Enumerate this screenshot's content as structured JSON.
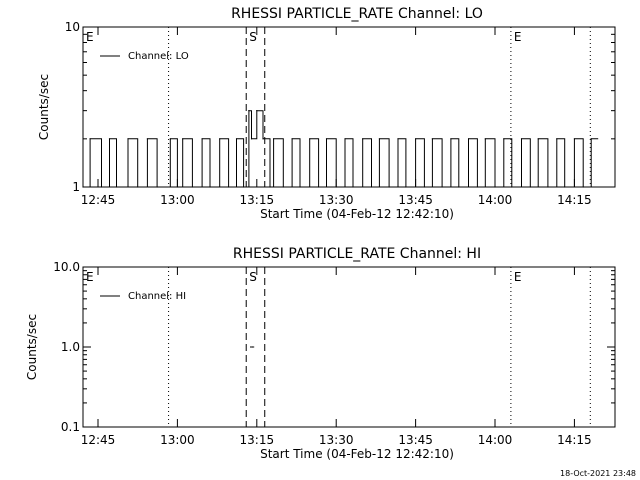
{
  "footer_text": "18-Oct-2021 23:48",
  "colors": {
    "background": "#ffffff",
    "foreground": "#000000"
  },
  "chart_data": [
    {
      "type": "line",
      "title": "RHESSI PARTICLE_RATE Channel: LO",
      "xlabel": "Start Time (04-Feb-12 12:42:10)",
      "ylabel": "Counts/sec",
      "yscale": "log",
      "ylim": [
        1,
        10
      ],
      "yticks": [
        "1",
        "10"
      ],
      "xlim": [
        "12:42:10",
        "14:22:40"
      ],
      "xticks": [
        "12:45",
        "13:00",
        "13:15",
        "13:30",
        "13:45",
        "14:00",
        "14:15"
      ],
      "legend": {
        "entries": [
          "Channel: LO"
        ],
        "placement": "top-left"
      },
      "markers": [
        {
          "label": "E",
          "time": "12:42:10",
          "style": "none"
        },
        {
          "label": "",
          "time": "12:58:20",
          "style": "dotted"
        },
        {
          "label": "S",
          "time": "13:13:00",
          "style": "dashed"
        },
        {
          "label": "",
          "time": "13:16:30",
          "style": "dashed"
        },
        {
          "label": "E",
          "time": "14:03:00",
          "style": "dotted"
        },
        {
          "label": "",
          "time": "14:18:00",
          "style": "dotted"
        }
      ],
      "series": [
        {
          "name": "Channel: LO",
          "x": [
            "12:42:10",
            "12:43:30",
            "12:45:40",
            "12:47:10",
            "12:48:30",
            "12:50:40",
            "12:52:30",
            "12:54:20",
            "12:56:10",
            "12:58:40",
            "13:00:00",
            "13:01:00",
            "13:02:50",
            "13:04:40",
            "13:06:10",
            "13:08:00",
            "13:09:40",
            "13:11:10",
            "13:12:30",
            "13:13:30",
            "13:14:00",
            "13:15:00",
            "13:16:10",
            "13:17:30",
            "13:18:10",
            "13:20:00",
            "13:21:40",
            "13:23:10",
            "13:25:00",
            "13:26:40",
            "13:28:10",
            "13:30:00",
            "13:31:40",
            "13:33:10",
            "13:35:00",
            "13:36:40",
            "13:38:10",
            "13:40:00",
            "13:41:40",
            "13:43:10",
            "13:45:00",
            "13:46:40",
            "13:48:10",
            "13:50:00",
            "13:51:40",
            "13:53:10",
            "13:55:00",
            "13:56:40",
            "13:58:10",
            "14:00:00",
            "14:01:40",
            "14:03:10",
            "14:05:00",
            "14:06:40",
            "14:08:10",
            "14:10:00",
            "14:11:40",
            "14:13:10",
            "14:15:00",
            "14:16:40",
            "14:18:10"
          ],
          "values": [
            1,
            2,
            1,
            2,
            1,
            2,
            1,
            2,
            1,
            2,
            1,
            2,
            1,
            2,
            1,
            2,
            1,
            2,
            1,
            3,
            2,
            3,
            2,
            1,
            2,
            1,
            2,
            1,
            2,
            1,
            2,
            1,
            2,
            1,
            2,
            1,
            2,
            1,
            2,
            1,
            2,
            1,
            2,
            1,
            2,
            1,
            2,
            1,
            2,
            1,
            2,
            1,
            2,
            1,
            2,
            1,
            2,
            1,
            2,
            1,
            2
          ]
        }
      ]
    },
    {
      "type": "line",
      "title": "RHESSI PARTICLE_RATE Channel: HI",
      "xlabel": "Start Time (04-Feb-12 12:42:10)",
      "ylabel": "Counts/sec",
      "yscale": "log",
      "ylim": [
        0.1,
        10
      ],
      "yticks": [
        "0.1",
        "1.0",
        "10.0"
      ],
      "xlim": [
        "12:42:10",
        "14:22:40"
      ],
      "xticks": [
        "12:45",
        "13:00",
        "13:15",
        "13:30",
        "13:45",
        "14:00",
        "14:15"
      ],
      "legend": {
        "entries": [
          "Channel: HI"
        ],
        "placement": "top-left"
      },
      "markers": [
        {
          "label": "E",
          "time": "12:42:10",
          "style": "none"
        },
        {
          "label": "",
          "time": "12:58:20",
          "style": "dotted"
        },
        {
          "label": "S",
          "time": "13:13:00",
          "style": "dashed"
        },
        {
          "label": "",
          "time": "13:16:30",
          "style": "dashed"
        },
        {
          "label": "E",
          "time": "14:03:00",
          "style": "dotted"
        },
        {
          "label": "",
          "time": "14:18:00",
          "style": "dotted"
        }
      ],
      "series": [
        {
          "name": "Channel: HI",
          "x": [
            "13:13:50",
            "13:14:10"
          ],
          "values": [
            1,
            1
          ]
        }
      ]
    }
  ]
}
